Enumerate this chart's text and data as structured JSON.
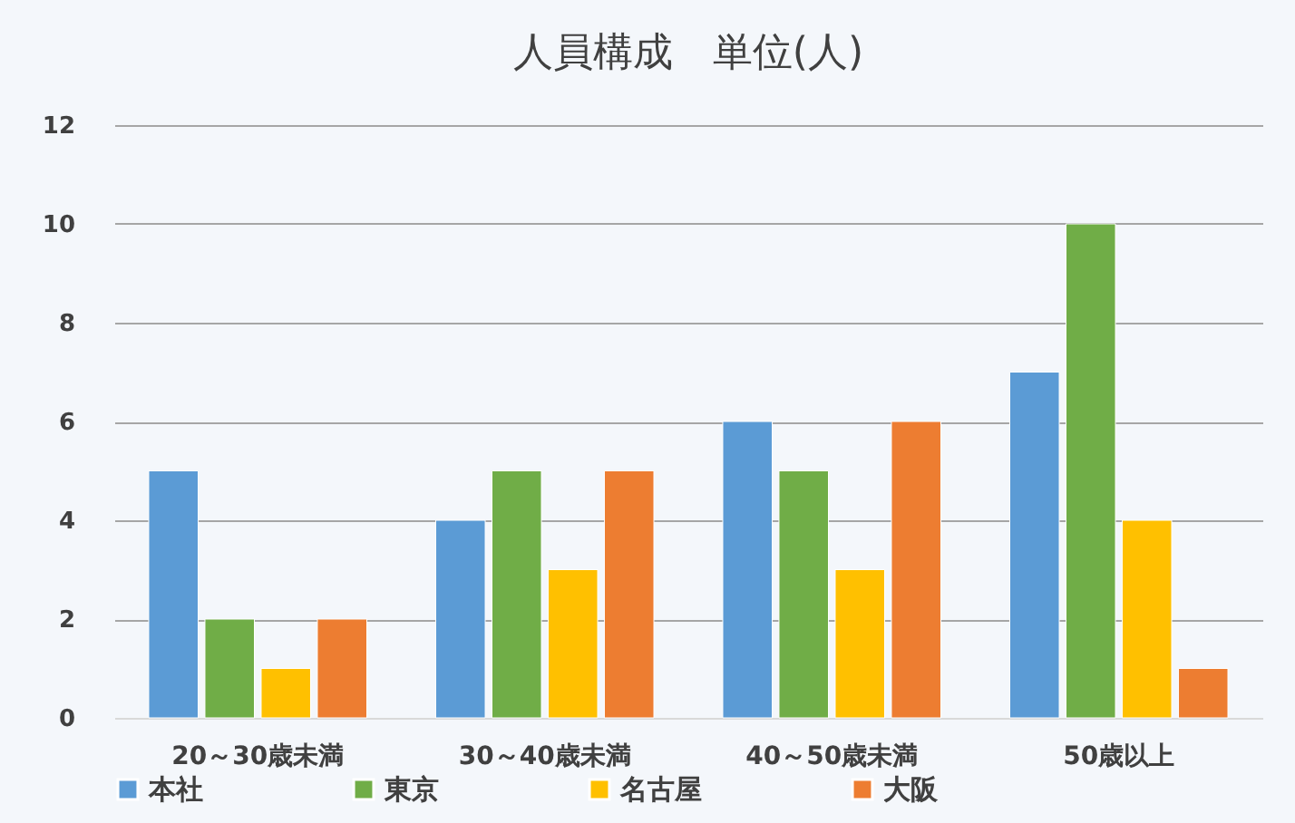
{
  "chart_data": {
    "type": "bar",
    "title": "人員構成　単位(人)",
    "categories": [
      "20～30歳未満",
      "30～40歳未満",
      "40～50歳未満",
      "50歳以上"
    ],
    "series": [
      {
        "name": "本社",
        "color": "#5b9bd5",
        "values": [
          5,
          4,
          6,
          7
        ]
      },
      {
        "name": "東京",
        "color": "#70ad47",
        "values": [
          2,
          5,
          5,
          10
        ]
      },
      {
        "name": "名古屋",
        "color": "#ffc000",
        "values": [
          1,
          3,
          3,
          4
        ]
      },
      {
        "name": "大阪",
        "color": "#ed7d31",
        "values": [
          2,
          5,
          6,
          1
        ]
      }
    ],
    "ylim": [
      0,
      12
    ],
    "yticks": [
      0,
      2,
      4,
      6,
      8,
      10,
      12
    ],
    "grid": "y",
    "legend": "bottom"
  }
}
